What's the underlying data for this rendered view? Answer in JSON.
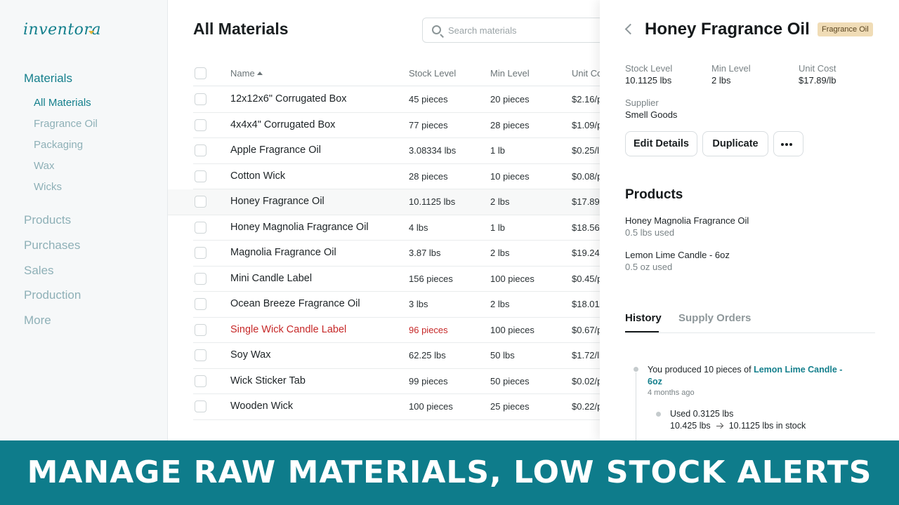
{
  "app": {
    "logo": "inventora"
  },
  "sidebar": {
    "sections": [
      {
        "label": "Materials",
        "active": true
      },
      {
        "label": "Products"
      },
      {
        "label": "Purchases"
      },
      {
        "label": "Sales"
      },
      {
        "label": "Production"
      },
      {
        "label": "More"
      }
    ],
    "sub_items": [
      {
        "label": "All Materials",
        "active": true
      },
      {
        "label": "Fragrance Oil"
      },
      {
        "label": "Packaging"
      },
      {
        "label": "Wax"
      },
      {
        "label": "Wicks"
      }
    ]
  },
  "main": {
    "title": "All Materials",
    "search_placeholder": "Search materials",
    "columns": {
      "name": "Name",
      "stock": "Stock Level",
      "min": "Min Level",
      "cost": "Unit Co"
    },
    "rows": [
      {
        "name": "12x12x6\" Corrugated Box",
        "stock": "45 pieces",
        "min": "20 pieces",
        "cost": "$2.16/p"
      },
      {
        "name": "4x4x4\" Corrugated Box",
        "stock": "77 pieces",
        "min": "28 pieces",
        "cost": "$1.09/p"
      },
      {
        "name": "Apple Fragrance Oil",
        "stock": "3.08334 lbs",
        "min": "1 lb",
        "cost": "$0.25/l"
      },
      {
        "name": "Cotton Wick",
        "stock": "28 pieces",
        "min": "10 pieces",
        "cost": "$0.08/p"
      },
      {
        "name": "Honey Fragrance Oil",
        "stock": "10.1125 lbs",
        "min": "2 lbs",
        "cost": "$17.89/"
      },
      {
        "name": "Honey Magnolia Fragrance Oil",
        "stock": "4 lbs",
        "min": "1 lb",
        "cost": "$18.56/"
      },
      {
        "name": "Magnolia Fragrance Oil",
        "stock": "3.87 lbs",
        "min": "2 lbs",
        "cost": "$19.24/"
      },
      {
        "name": "Mini Candle Label",
        "stock": "156 pieces",
        "min": "100 pieces",
        "cost": "$0.45/p"
      },
      {
        "name": "Ocean Breeze Fragrance Oil",
        "stock": "3 lbs",
        "min": "2 lbs",
        "cost": "$18.01/"
      },
      {
        "name": "Single Wick Candle Label",
        "stock": "96 pieces",
        "min": "100 pieces",
        "cost": "$0.67/p"
      },
      {
        "name": "Soy Wax",
        "stock": "62.25 lbs",
        "min": "50 lbs",
        "cost": "$1.72/lb"
      },
      {
        "name": "Wick Sticker Tab",
        "stock": "99 pieces",
        "min": "50 pieces",
        "cost": "$0.02/p"
      },
      {
        "name": "Wooden Wick",
        "stock": "100 pieces",
        "min": "25 pieces",
        "cost": "$0.22/p"
      }
    ]
  },
  "detail": {
    "title": "Honey Fragrance Oil",
    "badge": "Fragrance Oil",
    "stock_label": "Stock Level",
    "stock_value": "10.1125 lbs",
    "min_label": "Min Level",
    "min_value": "2 lbs",
    "cost_label": "Unit Cost",
    "cost_value": "$17.89/lb",
    "supplier_label": "Supplier",
    "supplier_value": "Smell Goods",
    "edit_button": "Edit Details",
    "duplicate_button": "Duplicate",
    "products_title": "Products",
    "products": [
      {
        "name": "Honey Magnolia Fragrance Oil",
        "used": "0.5 lbs used"
      },
      {
        "name": "Lemon Lime Candle - 6oz",
        "used": "0.5 oz used"
      }
    ],
    "tabs": {
      "history": "History",
      "supply_orders": "Supply Orders"
    },
    "history": {
      "text_prefix": "You produced 10 pieces of",
      "link_line1": "Lemon Lime Candle -",
      "link_line2": "6oz",
      "time": "4 months ago",
      "used": "Used 0.3125 lbs",
      "from": "10.425 lbs",
      "to": "10.1125 lbs in stock"
    }
  },
  "banner": {
    "text": "MANAGE RAW MATERIALS, LOW STOCK ALERTS"
  },
  "colors": {
    "accent": "#0e7c8b",
    "alert": "#c62828",
    "badge_bg": "#f0dcb6"
  }
}
